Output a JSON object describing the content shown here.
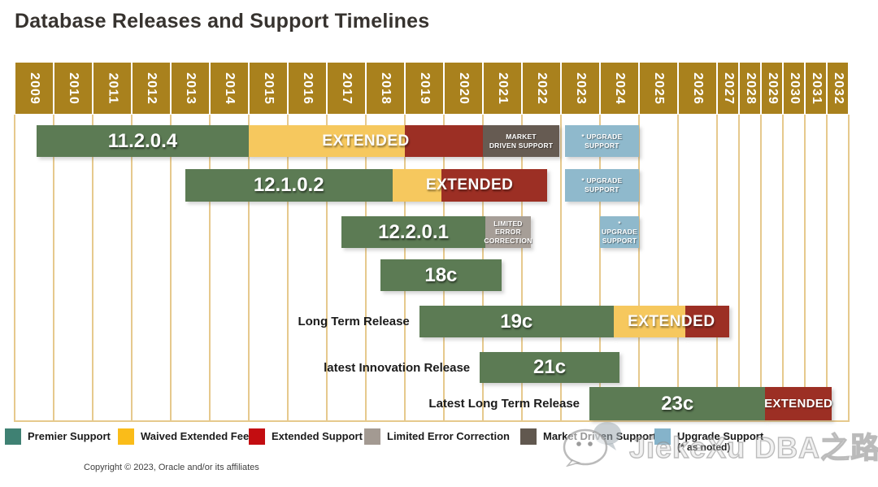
{
  "title": "Database Releases and Support Timelines",
  "copyright": "Copyright © 2023, Oracle and/or its affiliates",
  "watermark": {
    "icon": "wechat-icon",
    "text": "JiekeXu DBA之路"
  },
  "colors": {
    "year_header": "#a9811d",
    "gridline": "#e6c98d",
    "title_text": "#37332f",
    "bar_premier": "#5c7b54",
    "bar_waived": "#f6c85e",
    "bar_extended": "#9c2f24",
    "bar_limited": "#a69e97",
    "bar_market": "#665b52",
    "bar_upgrade": "#8fb9cc",
    "legend_premier": "#3f8173",
    "legend_waived": "#fabc19",
    "legend_extended": "#c30d11",
    "legend_limited": "#a39a92",
    "legend_market": "#61584f",
    "legend_upgrade": "#85b3ca"
  },
  "chart_data": {
    "type": "gantt-timeline",
    "title": "Database Releases and Support Timelines",
    "x_axis": {
      "start_year": 2009,
      "end_year": 2032,
      "narrow_columns_from": 2027,
      "years": [
        2009,
        2010,
        2011,
        2012,
        2013,
        2014,
        2015,
        2016,
        2017,
        2018,
        2019,
        2020,
        2021,
        2022,
        2023,
        2024,
        2025,
        2026,
        2027,
        2028,
        2029,
        2030,
        2031,
        2032
      ]
    },
    "rows": [
      {
        "release": "11.2.0.4",
        "row_label": "",
        "segments": [
          {
            "type": "premier",
            "start": 2009.56,
            "end": 2015.0,
            "text": "11.2.0.4",
            "text_style": "version"
          },
          {
            "type": "waived",
            "start": 2015.0,
            "end": 2019.0
          },
          {
            "type": "extended",
            "start": 2019.0,
            "end": 2021.0
          },
          {
            "type": "market",
            "start": 2021.0,
            "end": 2022.96,
            "text": "MARKET\nDRIVEN SUPPORT",
            "text_style": "tiny"
          },
          {
            "type": "upgrade",
            "start": 2023.1,
            "end": 2025.0,
            "text": "* UPGRADE\nSUPPORT",
            "text_style": "tiny"
          }
        ],
        "overlays": [
          {
            "text": "EXTENDED",
            "start": 2015.0,
            "end": 2021.0,
            "style": "extended"
          }
        ]
      },
      {
        "release": "12.1.0.2",
        "row_label": "",
        "segments": [
          {
            "type": "premier",
            "start": 2013.37,
            "end": 2018.68,
            "text": "12.1.0.2",
            "text_style": "version"
          },
          {
            "type": "waived",
            "start": 2018.68,
            "end": 2019.94
          },
          {
            "type": "extended",
            "start": 2019.94,
            "end": 2022.64
          },
          {
            "type": "upgrade",
            "start": 2023.1,
            "end": 2025.0,
            "text": "* UPGRADE\nSUPPORT",
            "text_style": "tiny"
          }
        ],
        "overlays": [
          {
            "text": "EXTENDED",
            "start": 2018.68,
            "end": 2022.64,
            "style": "extended"
          }
        ]
      },
      {
        "release": "12.2.0.1",
        "row_label": "",
        "segments": [
          {
            "type": "premier",
            "start": 2017.38,
            "end": 2021.06,
            "text": "12.2.0.1",
            "text_style": "version"
          },
          {
            "type": "limited",
            "start": 2021.06,
            "end": 2022.23,
            "text": "LIMITED ERROR\nCORRECTION",
            "text_style": "tiny"
          },
          {
            "type": "upgrade",
            "start": 2024.0,
            "end": 2025.0,
            "text": "* UPGRADE\nSUPPORT",
            "text_style": "tiny"
          }
        ],
        "overlays": []
      },
      {
        "release": "18c",
        "row_label": "",
        "segments": [
          {
            "type": "premier",
            "start": 2018.37,
            "end": 2021.48,
            "text": "18c",
            "text_style": "version"
          }
        ],
        "overlays": []
      },
      {
        "release": "19c",
        "row_label": "Long Term Release",
        "segments": [
          {
            "type": "premier",
            "start": 2019.37,
            "end": 2024.35,
            "text": "19c",
            "text_style": "version"
          },
          {
            "type": "waived",
            "start": 2024.35,
            "end": 2026.19
          },
          {
            "type": "extended",
            "start": 2026.19,
            "end": 2027.55
          }
        ],
        "overlays": [
          {
            "text": "EXTENDED",
            "start": 2024.35,
            "end": 2027.55,
            "style": "extended"
          }
        ]
      },
      {
        "release": "21c",
        "row_label": "latest Innovation Release",
        "segments": [
          {
            "type": "premier",
            "start": 2020.92,
            "end": 2024.5,
            "text": "21c",
            "text_style": "version"
          }
        ],
        "overlays": []
      },
      {
        "release": "23c",
        "row_label": "Latest Long Term Release",
        "segments": [
          {
            "type": "premier",
            "start": 2023.73,
            "end": 2029.2,
            "text": "23c",
            "text_style": "version"
          },
          {
            "type": "extended",
            "start": 2029.2,
            "end": 2032.22,
            "text": "EXTENDED",
            "text_style": "extended_small"
          }
        ],
        "overlays": []
      }
    ],
    "legend": [
      {
        "type": "premier",
        "label": "Premier Support"
      },
      {
        "type": "waived",
        "label": "Waived Extended Fee"
      },
      {
        "type": "extended",
        "label": "Extended Support"
      },
      {
        "type": "limited",
        "label": "Limited Error Correction"
      },
      {
        "type": "market",
        "label": "Market Driven Support"
      },
      {
        "type": "upgrade",
        "label": "Upgrade Support",
        "sublabel": "(* as noted)"
      }
    ]
  }
}
